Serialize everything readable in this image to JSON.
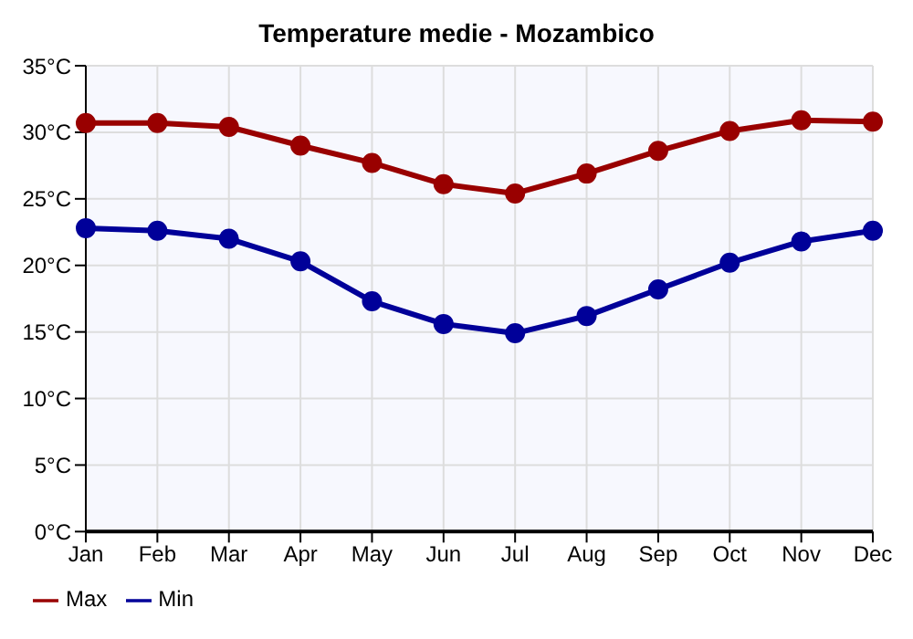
{
  "chart_data": {
    "type": "line",
    "title": "Temperature medie - Mozambico",
    "categories": [
      "Jan",
      "Feb",
      "Mar",
      "Apr",
      "May",
      "Jun",
      "Jul",
      "Aug",
      "Sep",
      "Oct",
      "Nov",
      "Dec"
    ],
    "series": [
      {
        "name": "Min",
        "color": "#000099",
        "values": [
          22.8,
          22.6,
          22.0,
          20.3,
          17.3,
          15.6,
          14.9,
          16.2,
          18.2,
          20.2,
          21.8,
          22.6
        ]
      },
      {
        "name": "Max",
        "color": "#990000",
        "values": [
          30.7,
          30.7,
          30.4,
          29.0,
          27.7,
          26.1,
          25.4,
          26.9,
          28.6,
          30.1,
          30.9,
          30.8
        ]
      }
    ],
    "ylim": [
      0,
      35
    ],
    "yticks": [
      {
        "value": 0,
        "label": "0°C"
      },
      {
        "value": 5,
        "label": "5°C"
      },
      {
        "value": 10,
        "label": "10°C"
      },
      {
        "value": 15,
        "label": "15°C"
      },
      {
        "value": 20,
        "label": "20°C"
      },
      {
        "value": 25,
        "label": "25°C"
      },
      {
        "value": 30,
        "label": "30°C"
      },
      {
        "value": 35,
        "label": "35°C"
      }
    ],
    "grid": true,
    "legend": "bottom left",
    "marker": "circle",
    "line_style": "solid"
  }
}
